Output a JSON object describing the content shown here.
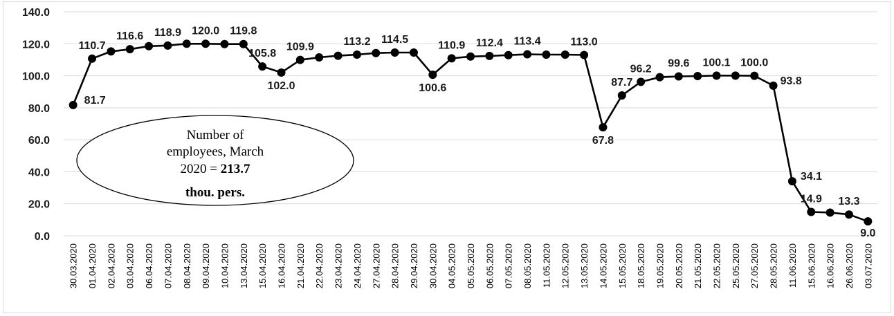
{
  "chart_data": {
    "type": "line",
    "categories": [
      "30.03.2020",
      "01.04.2020",
      "02.04.2020",
      "03.04.2020",
      "06.04.2020",
      "07.04.2020",
      "08.04.2020",
      "09.04.2020",
      "10.04.2020",
      "13.04.2020",
      "15.04.2020",
      "16.04.2020",
      "21.04.2020",
      "22.04.2020",
      "23.04.2020",
      "24.04.2020",
      "27.04.2020",
      "28.04.2020",
      "29.04.2020",
      "30.04.2020",
      "04.05.2020",
      "05.05.2020",
      "06.05.2020",
      "07.05.2020",
      "08.05.2020",
      "11.05.2020",
      "12.05.2020",
      "13.05.2020",
      "14.05.2020",
      "15.05.2020",
      "18.05.2020",
      "19.05.2020",
      "20.05.2020",
      "21.05.2020",
      "22.05.2020",
      "25.05.2020",
      "27.05.2020",
      "28.05.2020",
      "11.06.2020",
      "15.06.2020",
      "16.06.2020",
      "26.06.2020",
      "03.07.2020"
    ],
    "values": [
      81.7,
      110.7,
      115.2,
      116.6,
      118.5,
      118.9,
      120.0,
      120.0,
      119.8,
      119.8,
      105.8,
      102.0,
      109.9,
      111.5,
      112.5,
      113.2,
      114.2,
      114.5,
      114.5,
      100.6,
      110.9,
      112.0,
      112.4,
      112.9,
      113.4,
      113.2,
      113.2,
      113.0,
      67.8,
      87.7,
      96.2,
      99.1,
      99.6,
      99.8,
      100.1,
      100.1,
      100.0,
      93.8,
      34.1,
      14.9,
      14.5,
      13.3,
      9.0
    ],
    "data_labels": [
      "81.7",
      "110.7",
      "",
      "116.6",
      "",
      "118.9",
      "",
      "120.0",
      "",
      "119.8",
      "105.8",
      "102.0",
      "109.9",
      "",
      "",
      "113.2",
      "",
      "114.5",
      "",
      "100.6",
      "110.9",
      "",
      "112.4",
      "",
      "113.4",
      "",
      "",
      "113.0",
      "67.8",
      "87.7",
      "96.2",
      "",
      "99.6",
      "",
      "100.1",
      "",
      "100.0",
      "93.8",
      "34.1",
      "14.9",
      "",
      "13.3",
      "9.0"
    ],
    "y_ticks": [
      "0.0",
      "20.0",
      "40.0",
      "60.0",
      "80.0",
      "100.0",
      "120.0",
      "140.0"
    ],
    "ylim": [
      0,
      140
    ],
    "grid": true,
    "line_color": "#000000",
    "marker_color": "#000000",
    "title": "",
    "xlabel": "",
    "ylabel": ""
  },
  "annotation": {
    "line1": "Number of",
    "line2": "employees, March",
    "line3_prefix": "2020 = ",
    "line3_value": "213.7",
    "line4": "thou. pers."
  }
}
